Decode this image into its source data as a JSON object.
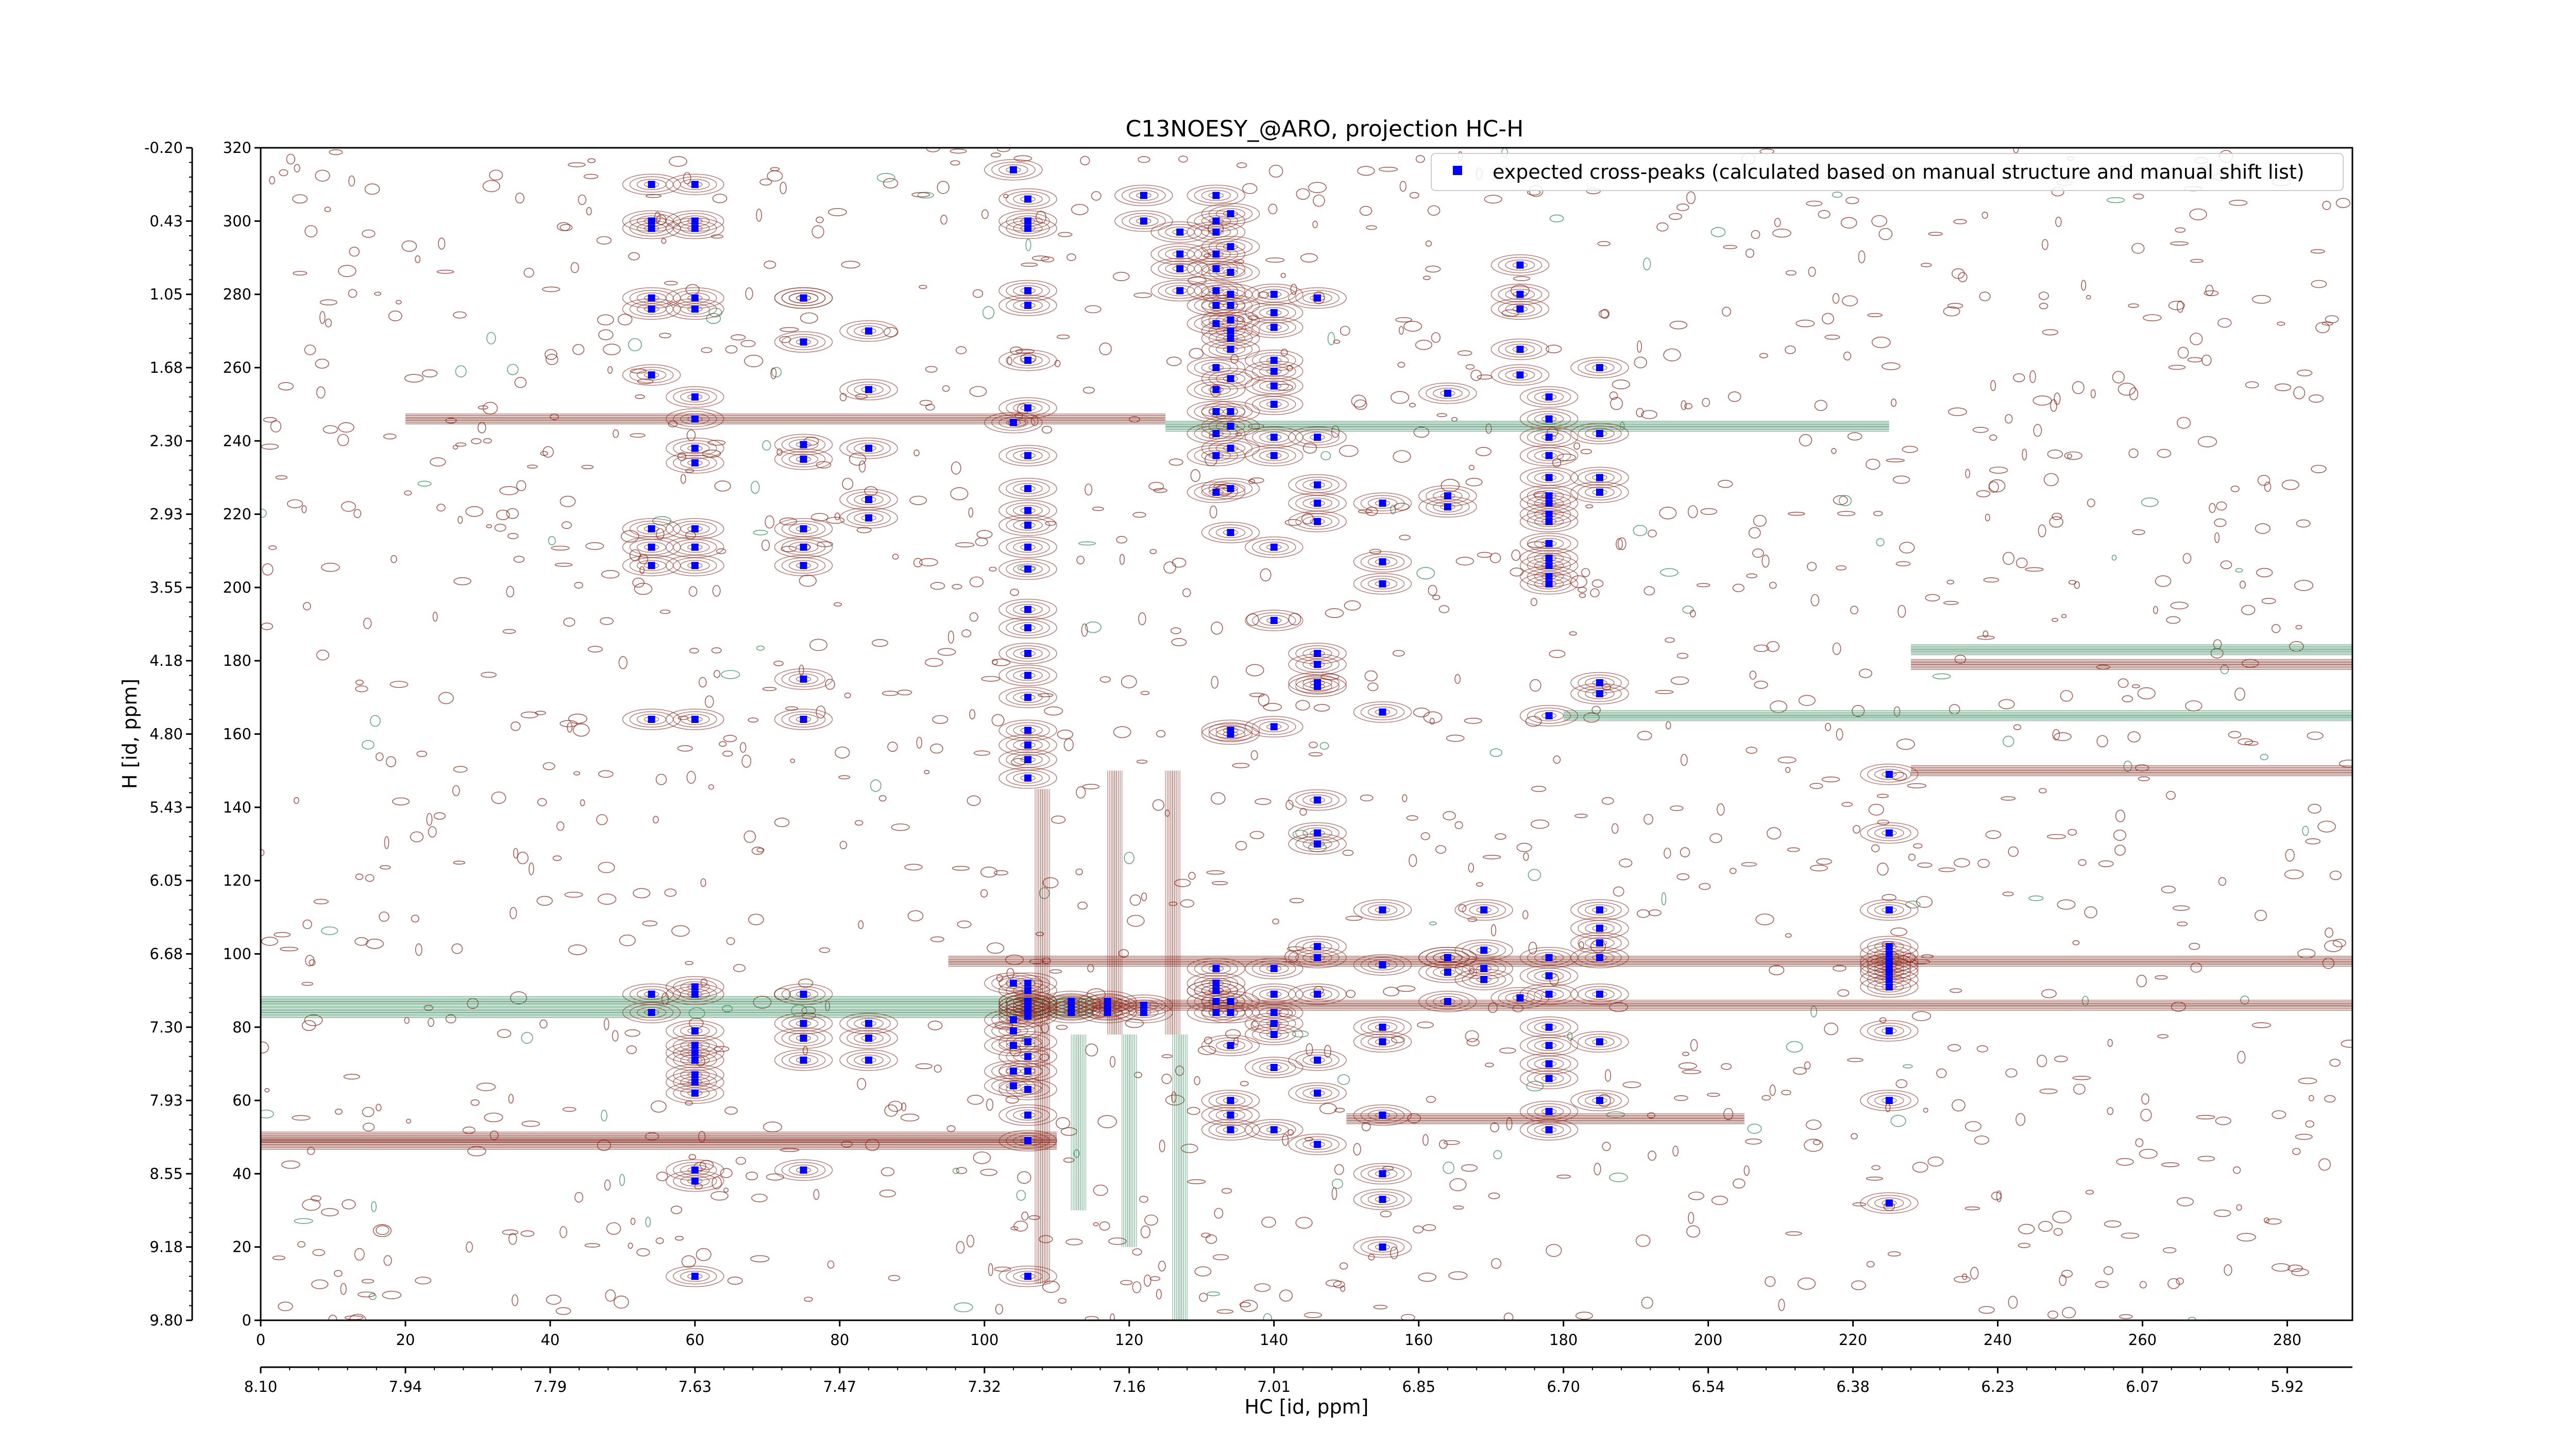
{
  "chart_data": {
    "type": "scatter",
    "title": "C13NOESY_@ARO, projection HC-H",
    "xlabel": "HC [id, ppm]",
    "ylabel": "H [id, ppm]",
    "xlim": [
      0,
      289
    ],
    "ylim": [
      0,
      320
    ],
    "x_ticks": [
      0,
      20,
      40,
      60,
      80,
      100,
      120,
      140,
      160,
      180,
      200,
      220,
      240,
      260,
      280
    ],
    "y_ticks": [
      0,
      20,
      40,
      60,
      80,
      100,
      120,
      140,
      160,
      180,
      200,
      220,
      240,
      260,
      280,
      300,
      320
    ],
    "x_ppm_ticks": [
      "8.10",
      "7.94",
      "7.79",
      "7.63",
      "7.47",
      "7.32",
      "7.16",
      "7.01",
      "6.85",
      "6.70",
      "6.54",
      "6.38",
      "6.23",
      "6.07",
      "5.92"
    ],
    "y_ppm_ticks": [
      "9.80",
      "9.18",
      "8.55",
      "7.93",
      "7.30",
      "6.68",
      "6.05",
      "5.43",
      "4.80",
      "4.18",
      "3.55",
      "2.93",
      "2.30",
      "1.68",
      "1.05",
      "0.43",
      "-0.20"
    ],
    "legend": {
      "position": "top-right",
      "entries": [
        "expected cross-peaks (calculated based on manual structure and manual shift list)"
      ]
    },
    "colors": {
      "peaks": "#0000ff",
      "positive_contours": "#8b2a1e",
      "negative_contours": "#2e8b57"
    },
    "horizontal_ridges": [
      {
        "y": 246,
        "x0": 20,
        "x1": 125,
        "sign": "positive"
      },
      {
        "y": 244,
        "x0": 125,
        "x1": 225,
        "sign": "negative"
      },
      {
        "y": 87,
        "x0": 0,
        "x1": 115,
        "sign": "negative"
      },
      {
        "y": 84,
        "x0": 0,
        "x1": 115,
        "sign": "negative"
      },
      {
        "y": 86,
        "x0": 115,
        "x1": 289,
        "sign": "positive"
      },
      {
        "y": 98,
        "x0": 95,
        "x1": 289,
        "sign": "positive"
      },
      {
        "y": 50,
        "x0": 0,
        "x1": 110,
        "sign": "positive"
      },
      {
        "y": 48,
        "x0": 0,
        "x1": 110,
        "sign": "positive"
      },
      {
        "y": 165,
        "x0": 180,
        "x1": 289,
        "sign": "negative"
      },
      {
        "y": 183,
        "x0": 228,
        "x1": 289,
        "sign": "negative"
      },
      {
        "y": 179,
        "x0": 228,
        "x1": 289,
        "sign": "positive"
      },
      {
        "y": 150,
        "x0": 228,
        "x1": 289,
        "sign": "positive"
      },
      {
        "y": 55,
        "x0": 150,
        "x1": 205,
        "sign": "positive"
      }
    ],
    "vertical_ridges": [
      {
        "x": 108,
        "y0": 10,
        "y1": 145,
        "sign": "positive"
      },
      {
        "x": 113,
        "y0": 30,
        "y1": 78,
        "sign": "negative"
      },
      {
        "x": 120,
        "y0": 20,
        "y1": 78,
        "sign": "negative"
      },
      {
        "x": 127,
        "y0": 0,
        "y1": 78,
        "sign": "negative"
      },
      {
        "x": 118,
        "y0": 78,
        "y1": 150,
        "sign": "positive"
      },
      {
        "x": 126,
        "y0": 78,
        "y1": 150,
        "sign": "positive"
      }
    ],
    "peaks_x": [
      54,
      54,
      54,
      54,
      54,
      54,
      54,
      54,
      54,
      54,
      54,
      54,
      60,
      60,
      60,
      60,
      60,
      60,
      60,
      60,
      60,
      60,
      60,
      60,
      60,
      60,
      60,
      60,
      60,
      60,
      60,
      60,
      60,
      60,
      60,
      60,
      60,
      75,
      75,
      75,
      75,
      75,
      75,
      75,
      75,
      75,
      75,
      75,
      75,
      75,
      75,
      75,
      84,
      84,
      84,
      84,
      84,
      84,
      84,
      84,
      104,
      104,
      104,
      104,
      104,
      104,
      104,
      104,
      106,
      106,
      106,
      106,
      106,
      106,
      106,
      106,
      106,
      106,
      106,
      106,
      106,
      106,
      106,
      106,
      106,
      106,
      106,
      106,
      106,
      106,
      106,
      106,
      106,
      106,
      106,
      106,
      106,
      106,
      106,
      106,
      106,
      106,
      106,
      106,
      106,
      106,
      106,
      112,
      112,
      112,
      112,
      117,
      117,
      117,
      117,
      122,
      122,
      122,
      122,
      127,
      127,
      127,
      127,
      132,
      132,
      132,
      132,
      132,
      132,
      132,
      132,
      132,
      132,
      132,
      132,
      132,
      132,
      132,
      132,
      132,
      132,
      132,
      132,
      134,
      134,
      134,
      134,
      134,
      134,
      134,
      134,
      134,
      134,
      134,
      134,
      134,
      134,
      134,
      134,
      134,
      134,
      134,
      134,
      134,
      134,
      134,
      140,
      140,
      140,
      140,
      140,
      140,
      140,
      140,
      140,
      140,
      140,
      140,
      140,
      140,
      140,
      140,
      140,
      140,
      140,
      146,
      146,
      146,
      146,
      146,
      146,
      146,
      146,
      146,
      146,
      146,
      146,
      146,
      146,
      146,
      146,
      146,
      146,
      155,
      155,
      155,
      155,
      155,
      155,
      155,
      155,
      155,
      155,
      155,
      155,
      164,
      164,
      164,
      164,
      164,
      164,
      164,
      169,
      169,
      169,
      169,
      174,
      174,
      174,
      174,
      174,
      174,
      178,
      178,
      178,
      178,
      178,
      178,
      178,
      178,
      178,
      178,
      178,
      178,
      178,
      178,
      178,
      178,
      178,
      178,
      178,
      178,
      178,
      178,
      178,
      178,
      185,
      185,
      185,
      185,
      185,
      185,
      185,
      185,
      185,
      185,
      185,
      185,
      185,
      225,
      225,
      225,
      225,
      225,
      225,
      225,
      225,
      225,
      225,
      225,
      225,
      225,
      225,
      225,
      225
    ],
    "peaks_y": [
      310,
      300,
      298,
      279,
      276,
      258,
      216,
      211,
      206,
      164,
      89,
      84,
      310,
      300,
      298,
      279,
      276,
      252,
      246,
      238,
      234,
      216,
      211,
      206,
      164,
      91,
      89,
      79,
      75,
      73,
      71,
      67,
      65,
      62,
      41,
      38,
      12,
      279,
      267,
      239,
      235,
      216,
      211,
      206,
      175,
      164,
      89,
      81,
      77,
      71,
      41,
      279,
      254,
      238,
      224,
      219,
      81,
      77,
      71,
      270,
      245,
      92,
      82,
      79,
      75,
      68,
      64,
      314,
      306,
      300,
      298,
      281,
      277,
      262,
      249,
      236,
      227,
      221,
      217,
      211,
      205,
      194,
      189,
      182,
      176,
      170,
      161,
      157,
      153,
      148,
      92,
      90,
      86,
      83,
      76,
      72,
      68,
      63,
      56,
      49,
      12,
      87,
      85,
      86,
      84,
      87,
      85,
      86,
      84,
      87,
      85,
      86,
      84,
      87,
      85,
      86,
      84,
      307,
      300,
      297,
      291,
      287,
      281,
      277,
      272,
      260,
      254,
      248,
      242,
      236,
      226,
      96,
      90,
      92,
      90,
      87,
      84,
      307,
      300,
      297,
      291,
      287,
      281,
      277,
      270,
      265,
      257,
      248,
      244,
      238,
      227,
      215,
      161,
      160,
      87,
      84,
      75,
      60,
      56,
      52,
      302,
      293,
      286,
      280,
      273,
      268,
      259,
      250,
      241,
      236,
      211,
      191,
      162,
      96,
      89,
      84,
      81,
      78,
      69,
      52,
      280,
      275,
      271,
      262,
      255,
      241,
      228,
      223,
      218,
      179,
      173,
      142,
      133,
      99,
      89,
      71,
      62,
      48,
      279,
      182,
      174,
      130,
      102,
      97,
      80,
      76,
      56,
      40,
      33,
      20,
      223,
      207,
      201,
      166,
      112,
      99,
      95,
      253,
      225,
      99,
      87,
      222,
      112,
      101,
      96,
      93,
      88,
      288,
      280,
      276,
      265,
      258,
      252,
      246,
      241,
      236,
      230,
      223,
      218,
      212,
      206,
      165,
      99,
      94,
      89,
      80,
      75,
      70,
      66,
      57,
      52,
      225,
      220,
      208,
      203,
      201,
      171,
      112,
      107,
      103,
      99,
      89,
      76,
      60,
      242,
      230,
      226,
      260,
      174,
      149,
      133,
      112,
      102,
      100,
      98,
      97,
      96,
      95,
      93,
      91,
      79,
      60,
      32
    ],
    "labels_shown": true
  },
  "legend": {
    "marker_color": "#0000ff",
    "label": "expected cross-peaks (calculated based on manual structure and manual shift list)"
  }
}
